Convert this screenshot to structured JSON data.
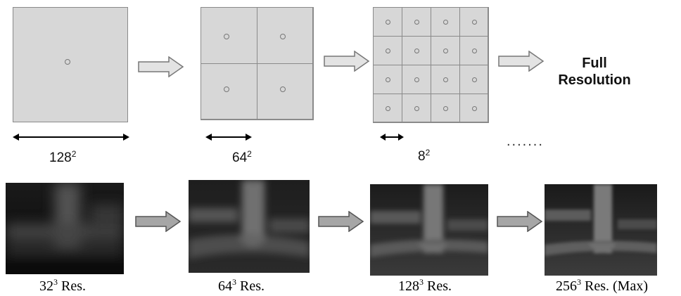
{
  "top_row": {
    "grid1": {
      "label_base": "128",
      "label_exp": "2",
      "cells": 1
    },
    "grid2": {
      "label_base": "64",
      "label_exp": "2",
      "cells": 2
    },
    "grid3": {
      "label_base": "8",
      "label_exp": "2",
      "cells": 4
    },
    "full_resolution": {
      "line1": "Full",
      "line2": "Resolution"
    },
    "ellipsis": "......."
  },
  "bottom_row": {
    "renders": [
      {
        "base": "32",
        "exp": "3",
        "suffix": " Res."
      },
      {
        "base": "64",
        "exp": "3",
        "suffix": " Res."
      },
      {
        "base": "128",
        "exp": "3",
        "suffix": " Res."
      },
      {
        "base": "256",
        "exp": "3",
        "suffix": " Res. (Max)"
      }
    ]
  },
  "colors": {
    "grid_fill": "#d7d7d7",
    "arrow_fill": "#e3e3e3",
    "arrow_stroke": "#777777"
  }
}
